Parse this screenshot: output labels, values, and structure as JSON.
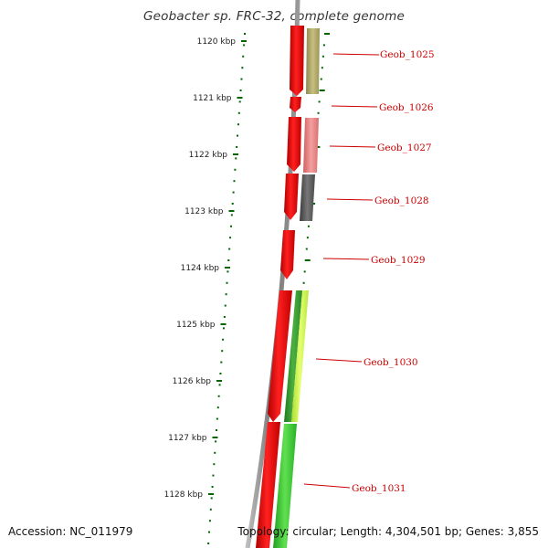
{
  "title": "Geobacter sp. FRC-32, complete genome",
  "accession": "Accession: NC_011979",
  "summary": "Topology: circular; Length: 4,304,501 bp; Genes: 3,855",
  "kbp_ticks": [
    {
      "kb": 1120,
      "label": "1120 kbp"
    },
    {
      "kb": 1121,
      "label": "1121 kbp"
    },
    {
      "kb": 1122,
      "label": "1122 kbp"
    },
    {
      "kb": 1123,
      "label": "1123 kbp"
    },
    {
      "kb": 1124,
      "label": "1124 kbp"
    },
    {
      "kb": 1125,
      "label": "1125 kbp"
    },
    {
      "kb": 1126,
      "label": "1126 kbp"
    },
    {
      "kb": 1127,
      "label": "1127 kbp"
    },
    {
      "kb": 1128,
      "label": "1128 kbp"
    }
  ],
  "genes": [
    {
      "name": "Geob_1025",
      "cds_color": "#a8a060",
      "arrow_color": "#ee0000"
    },
    {
      "name": "Geob_1026",
      "cds_color": "",
      "arrow_color": "#ee0000"
    },
    {
      "name": "Geob_1027",
      "cds_color": "#e87878",
      "arrow_color": "#ee0000"
    },
    {
      "name": "Geob_1028",
      "cds_color": "#555555",
      "arrow_color": "#ee0000"
    },
    {
      "name": "Geob_1029",
      "cds_color": "",
      "arrow_color": "#ee0000"
    },
    {
      "name": "Geob_1030",
      "cds_color": "#3aa030",
      "cds_color_2": "#c8f040",
      "arrow_color": "#ee0000"
    },
    {
      "name": "Geob_1031",
      "cds_color": "#30c030",
      "arrow_color": "#ee0000"
    }
  ],
  "colors": {
    "backbone": "#888888",
    "tick": "#006600",
    "gene_label": "#cc0000",
    "leader": "#cc0000"
  }
}
